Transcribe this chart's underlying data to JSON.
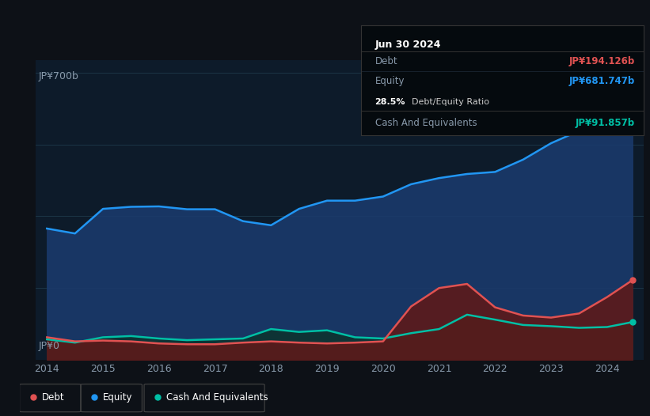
{
  "bg_color": "#0d1117",
  "chart_bg": "#0d1b2a",
  "debt_color": "#e05252",
  "equity_color": "#2196f3",
  "cash_color": "#00bfa5",
  "grid_color": "#1e3a4a",
  "ylabel_top": "JP¥700b",
  "ylabel_bottom": "JP¥0",
  "years": [
    2014.0,
    2014.5,
    2015.0,
    2015.5,
    2016.0,
    2016.5,
    2017.0,
    2017.5,
    2018.0,
    2018.5,
    2019.0,
    2019.5,
    2020.0,
    2020.5,
    2021.0,
    2021.5,
    2022.0,
    2022.5,
    2023.0,
    2023.5,
    2024.0,
    2024.45
  ],
  "equity": [
    320,
    308,
    368,
    373,
    374,
    367,
    367,
    338,
    328,
    368,
    388,
    388,
    398,
    428,
    443,
    453,
    458,
    488,
    528,
    558,
    593,
    680
  ],
  "debt": [
    55,
    45,
    47,
    45,
    40,
    38,
    38,
    42,
    45,
    42,
    40,
    42,
    45,
    130,
    175,
    185,
    128,
    108,
    103,
    113,
    153,
    194
  ],
  "cash": [
    50,
    42,
    55,
    58,
    52,
    48,
    50,
    52,
    75,
    68,
    72,
    55,
    52,
    65,
    75,
    110,
    98,
    85,
    82,
    78,
    80,
    92
  ],
  "xlim": [
    2013.8,
    2024.65
  ],
  "ylim": [
    0,
    730
  ],
  "xticks": [
    2014,
    2015,
    2016,
    2017,
    2018,
    2019,
    2020,
    2021,
    2022,
    2023,
    2024
  ],
  "tooltip": {
    "date": "Jun 30 2024",
    "debt_label": "Debt",
    "debt_value": "JP¥194.126b",
    "equity_label": "Equity",
    "equity_value": "JP¥681.747b",
    "ratio_pct": "28.5%",
    "ratio_label": "Debt/Equity Ratio",
    "cash_label": "Cash And Equivalents",
    "cash_value": "JP¥91.857b"
  },
  "legend": [
    {
      "label": "Debt",
      "color": "#e05252"
    },
    {
      "label": "Equity",
      "color": "#2196f3"
    },
    {
      "label": "Cash And Equivalents",
      "color": "#00bfa5"
    }
  ]
}
